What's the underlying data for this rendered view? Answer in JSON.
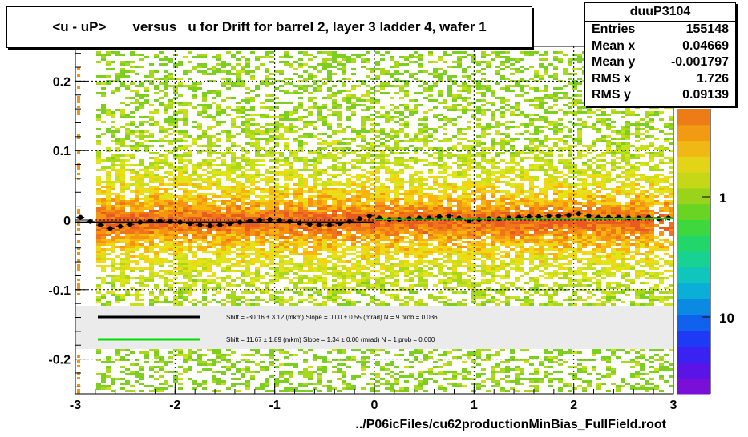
{
  "title": "<u - uP>       versus   u for Drift for barrel 2, layer 3 ladder 4, wafer 1",
  "footer": "../P06icFiles/cu62productionMinBias_FullField.root",
  "stats": {
    "name": "duuP3104",
    "rows": [
      {
        "label": "Entries",
        "value": "155148"
      },
      {
        "label": "Mean x",
        "value": "0.04669"
      },
      {
        "label": "Mean y",
        "value": "-0.001797"
      },
      {
        "label": "RMS x",
        "value": "1.726"
      },
      {
        "label": "RMS y",
        "value": "0.09139"
      }
    ]
  },
  "chart_data": {
    "type": "heatmap",
    "title": "<u - uP>       versus   u for Drift for barrel 2, layer 3 ladder 4, wafer 1",
    "xlabel": "",
    "ylabel": "",
    "xlim": [
      -3,
      3
    ],
    "ylim": [
      -0.25,
      0.25
    ],
    "x_ticks": [
      "-3",
      "-2",
      "-1",
      "0",
      "1",
      "2",
      "3"
    ],
    "y_ticks": [
      "-0.2",
      "-0.1",
      "0",
      "0.1",
      "0.2"
    ],
    "z_scale": "log",
    "z_ticks": [
      "1",
      "10"
    ],
    "grid": true,
    "legend": {
      "placement": "lower-middle",
      "entries": [
        {
          "color": "#000000",
          "text": "Shift =   -30.16 ± 3.12 (mkm) Slope =     0.00 ± 0.55 (mrad)  N = 9 prob = 0.036"
        },
        {
          "color": "#00dd00",
          "text": "Shift =    11.67 ± 1.89 (mkm) Slope =     1.34 ± 0.00 (mrad)  N = 1 prob = 0.000"
        }
      ]
    },
    "profile": {
      "x": [
        -2.95,
        -2.85,
        -2.75,
        -2.65,
        -2.55,
        -2.45,
        -2.35,
        -2.25,
        -2.15,
        -2.05,
        -1.95,
        -1.85,
        -1.75,
        -1.65,
        -1.55,
        -1.45,
        -1.35,
        -1.25,
        -1.15,
        -1.05,
        -0.95,
        -0.85,
        -0.75,
        -0.65,
        -0.55,
        -0.45,
        -0.35,
        -0.25,
        -0.15,
        -0.05,
        0.05,
        0.15,
        0.25,
        0.35,
        0.45,
        0.55,
        0.65,
        0.75,
        0.85,
        0.95,
        1.05,
        1.15,
        1.25,
        1.35,
        1.45,
        1.55,
        1.65,
        1.75,
        1.85,
        1.95,
        2.05,
        2.15,
        2.25,
        2.35,
        2.45,
        2.55,
        2.65,
        2.75,
        2.85,
        2.95
      ],
      "y": [
        0.004,
        -0.002,
        -0.007,
        -0.012,
        -0.009,
        -0.006,
        -0.003,
        -0.001,
        -0.001,
        -0.002,
        -0.003,
        -0.005,
        -0.007,
        -0.008,
        -0.007,
        -0.005,
        -0.003,
        -0.001,
        0.0,
        0.001,
        0.0,
        -0.002,
        -0.004,
        -0.006,
        -0.007,
        -0.007,
        -0.005,
        -0.002,
        0.002,
        0.006,
        0.003,
        0.001,
        0.001,
        0.002,
        0.003,
        0.003,
        0.005,
        0.006,
        0.003,
        -0.001,
        0.001,
        0.002,
        0.002,
        0.003,
        0.004,
        0.005,
        0.005,
        0.006,
        0.006,
        0.007,
        0.009,
        0.006,
        0.004,
        0.004,
        0.004,
        0.003,
        0.003,
        0.004,
        0.002,
        0.003
      ]
    },
    "fits": [
      {
        "color": "#000000",
        "x": [
          -3,
          0
        ],
        "y": [
          -0.003,
          -0.003
        ]
      },
      {
        "color": "#00dd00",
        "x": [
          0,
          3
        ],
        "y": [
          0.0012,
          0.0028
        ]
      }
    ]
  }
}
